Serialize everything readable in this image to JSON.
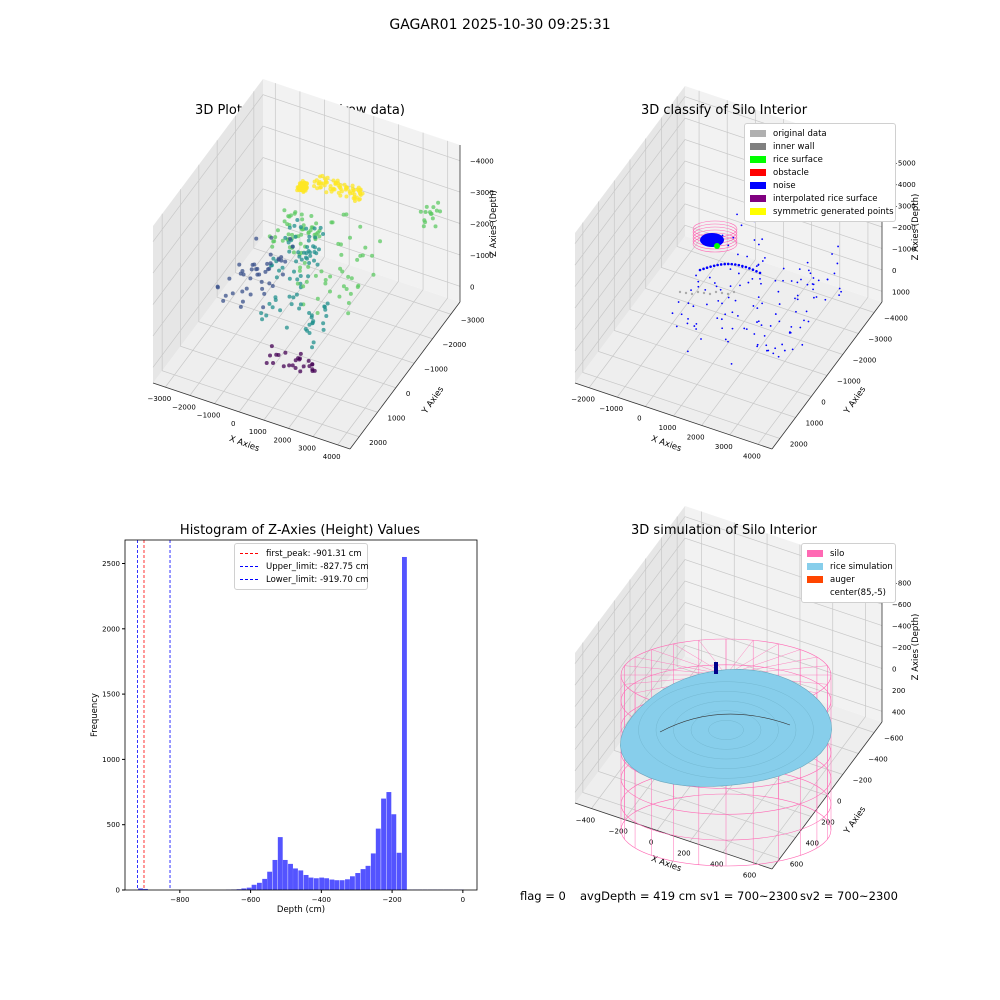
{
  "figure": {
    "suptitle": "GAGAR01 2025-10-30 09:25:31",
    "status": {
      "flag": "flag = 0",
      "avg_depth": "avgDepth = 419 cm",
      "sv1": "sv1 = 700~2300",
      "sv2": "sv2 = 700~2300"
    }
  },
  "colors": {
    "pane_left": "#f2f2f2",
    "pane_right": "#e6e6e6",
    "pane_floor": "#eeeeee",
    "grid": "#c8c8c8",
    "hist_bar": "#4b4bff",
    "first_peak": "#ff0000",
    "limit_line": "#0000ff"
  },
  "chart_data": [
    {
      "type": "scatter",
      "title": "3D Plot of Silo Interior(row data)",
      "xlabel": "X Axies",
      "ylabel": "Y Axies",
      "zlabel": "Z Axies (Depth)",
      "x_ticks": [
        "−3000",
        "−2000",
        "−1000",
        "0",
        "1000",
        "2000",
        "3000",
        "4000"
      ],
      "y_ticks": [
        "2000",
        "1000",
        "0",
        "−1000",
        "−2000",
        "−3000"
      ],
      "z_ticks": [
        "0",
        "−1000",
        "−2000",
        "−3000",
        "−4000"
      ],
      "xlim": [
        -3000,
        4300
      ],
      "ylim": [
        -3300,
        2600
      ],
      "zlim": [
        -4500,
        0
      ],
      "colormap": "viridis (by depth)"
    },
    {
      "type": "scatter",
      "title": "3D classify of Silo Interior",
      "xlabel": "X Axies",
      "ylabel": "Y Axies",
      "zlabel": "Z Axies (Depth)",
      "x_ticks": [
        "−2000",
        "−1000",
        "0",
        "1000",
        "2000",
        "3000",
        "4000"
      ],
      "y_ticks": [
        "2000",
        "1000",
        "0",
        "−1000",
        "−2000",
        "−3000",
        "−4000"
      ],
      "z_ticks": [
        "1000",
        "0",
        "−1000",
        "−2000",
        "−3000",
        "−4000",
        "−5000"
      ],
      "xlim": [
        -2300,
        4200
      ],
      "ylim": [
        -4200,
        2600
      ],
      "zlim": [
        -5300,
        1200
      ],
      "legend": [
        {
          "label": "original data",
          "color": "#b0b0b0"
        },
        {
          "label": "inner wall",
          "color": "#808080"
        },
        {
          "label": "rice surface",
          "color": "#00ff00"
        },
        {
          "label": "obstacle",
          "color": "#ff0000"
        },
        {
          "label": "noise",
          "color": "#0000ff"
        },
        {
          "label": "interpolated rice surface",
          "color": "#800080"
        },
        {
          "label": "symmetric generated points",
          "color": "#ffff00"
        }
      ],
      "legend_position": "top-right"
    },
    {
      "type": "bar",
      "title": "Histogram of Z-Axies (Height) Values",
      "xlabel": "Depth (cm)",
      "ylabel": "Frequency",
      "xlim": [
        -955,
        40
      ],
      "ylim": [
        0,
        2680
      ],
      "x_ticks": [
        -800,
        -600,
        -400,
        -200,
        0
      ],
      "y_ticks": [
        0,
        500,
        1000,
        1500,
        2000,
        2500
      ],
      "bin_width": 14.6,
      "bins_start": [
        -918,
        -904,
        -670,
        -655,
        -640,
        -626,
        -611,
        -597,
        -582,
        -567,
        -553,
        -538,
        -523,
        -509,
        -494,
        -480,
        -465,
        -450,
        -436,
        -421,
        -406,
        -392,
        -377,
        -363,
        -348,
        -333,
        -319,
        -304,
        -289,
        -275,
        -260,
        -246,
        -231,
        -216,
        -202,
        -187,
        -172,
        -158,
        -143,
        -129,
        -114,
        -99,
        -85,
        -70,
        -55,
        -41,
        -26,
        -11
      ],
      "values": [
        12,
        8,
        2,
        4,
        6,
        12,
        18,
        40,
        55,
        85,
        140,
        230,
        405,
        230,
        200,
        165,
        150,
        115,
        95,
        90,
        95,
        90,
        80,
        75,
        75,
        82,
        105,
        130,
        160,
        185,
        280,
        470,
        700,
        750,
        580,
        285,
        2550,
        3,
        3,
        3,
        3,
        3,
        3,
        3,
        3,
        3,
        3,
        3
      ],
      "series_note": "",
      "vlines": [
        {
          "label": "first_peak: -901.31 cm",
          "x": -901.31,
          "color": "#ff0000"
        },
        {
          "label": "Upper_limit: -827.75 cm",
          "x": -827.75,
          "color": "#0000ff"
        },
        {
          "label": "Lower_limit: -919.70 cm",
          "x": -919.7,
          "color": "#0000ff"
        }
      ],
      "legend_position": "top-center"
    },
    {
      "type": "scatter",
      "title": "3D simulation of Silo Interior",
      "xlabel": "X Axies",
      "ylabel": "Y Axies",
      "zlabel": "Z Axies (Depth)",
      "x_ticks": [
        "−400",
        "−200",
        "0",
        "200",
        "400",
        "600"
      ],
      "y_ticks": [
        "600",
        "400",
        "200",
        "0",
        "−200",
        "−400",
        "−600"
      ],
      "z_ticks": [
        "400",
        "200",
        "0",
        "−200",
        "−400",
        "−600",
        "−800"
      ],
      "xlim": [
        -550,
        700
      ],
      "ylim": [
        -650,
        650
      ],
      "zlim": [
        -900,
        450
      ],
      "legend": [
        {
          "label": "silo",
          "color": "#ff69b4"
        },
        {
          "label": "rice simulation",
          "color": "#87ceeb"
        },
        {
          "label": "auger",
          "color": "#ff4500"
        },
        {
          "label": "center(85,-5)",
          "color": "#ffffff"
        }
      ],
      "legend_position": "top-right"
    }
  ]
}
